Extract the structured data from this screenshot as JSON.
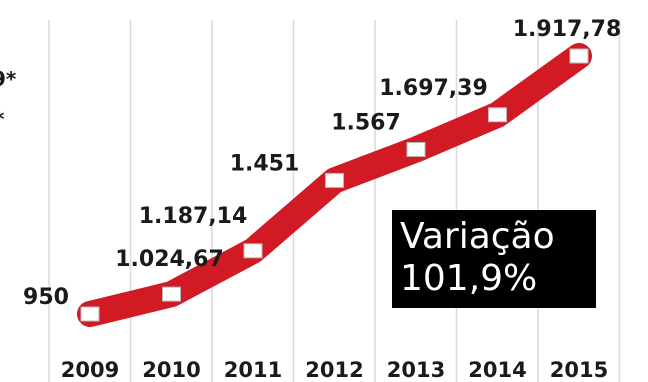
{
  "chart_data": {
    "type": "line",
    "categories": [
      "2009",
      "2010",
      "2011",
      "2012",
      "2013",
      "2014",
      "2015"
    ],
    "values": [
      950,
      1024.67,
      1187.14,
      1451,
      1567,
      1697.39,
      1917.78
    ],
    "data_labels": [
      "950",
      "1.024,67",
      "1.187,14",
      "1.451",
      "1.567",
      "1.697,39",
      "1.917,78"
    ],
    "highlight_last_label": true,
    "colors": {
      "line": "#d11a23",
      "marker": "#ffffff",
      "text": "#1a1a1a",
      "highlight": "#d11a23",
      "callout_bg": "#000000",
      "callout_text": "#ffffff"
    },
    "grid": "vertical",
    "legend": "none"
  },
  "callout": {
    "line1": "Variação",
    "line2": "101,9%"
  },
  "left_fragments": [
    "9*",
    "*"
  ]
}
